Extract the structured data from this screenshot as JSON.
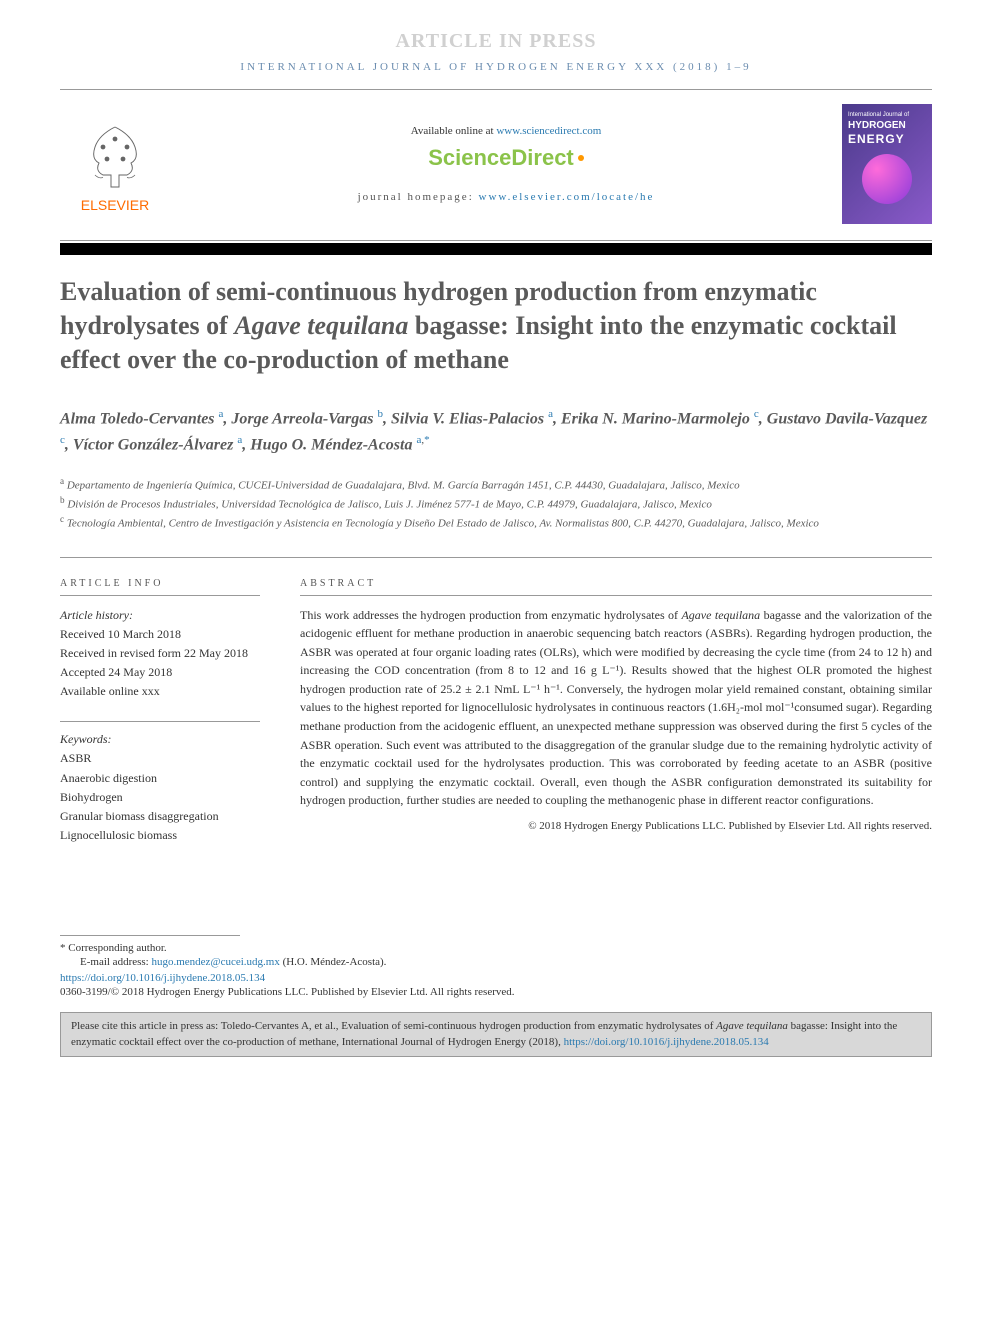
{
  "banner": {
    "article_in_press": "ARTICLE IN PRESS",
    "journal_ref": "INTERNATIONAL JOURNAL OF HYDROGEN ENERGY XXX (2018) 1–9"
  },
  "header": {
    "available_prefix": "Available online at ",
    "available_url": "www.sciencedirect.com",
    "sciencedirect": "ScienceDirect",
    "homepage_prefix": "journal homepage: ",
    "homepage_url": "www.elsevier.com/locate/he",
    "elsevier_label": "ELSEVIER",
    "cover_text1": "International Journal of",
    "cover_text2": "HYDROGEN",
    "cover_text3": "ENERGY"
  },
  "title": {
    "part1": "Evaluation of semi-continuous hydrogen production from enzymatic hydrolysates of ",
    "species": "Agave tequilana",
    "part2": " bagasse: Insight into the enzymatic cocktail effect over the co-production of methane"
  },
  "authors": [
    {
      "name": "Alma Toledo-Cervantes",
      "aff": "a"
    },
    {
      "name": "Jorge Arreola-Vargas",
      "aff": "b"
    },
    {
      "name": "Silvia V. Elias-Palacios",
      "aff": "a"
    },
    {
      "name": "Erika N. Marino-Marmolejo",
      "aff": "c"
    },
    {
      "name": "Gustavo Davila-Vazquez",
      "aff": "c"
    },
    {
      "name": "Víctor González-Álvarez",
      "aff": "a"
    },
    {
      "name": "Hugo O. Méndez-Acosta",
      "aff": "a",
      "corr": true
    }
  ],
  "affiliations": [
    {
      "key": "a",
      "text": "Departamento de Ingeniería Química, CUCEI-Universidad de Guadalajara, Blvd. M. García Barragán 1451, C.P. 44430, Guadalajara, Jalisco, Mexico"
    },
    {
      "key": "b",
      "text": "División de Procesos Industriales, Universidad Tecnológica de Jalisco, Luis J. Jiménez 577-1 de Mayo, C.P. 44979, Guadalajara, Jalisco, Mexico"
    },
    {
      "key": "c",
      "text": "Tecnología Ambiental, Centro de Investigación y Asistencia en Tecnología y Diseño Del Estado de Jalisco, Av. Normalistas 800, C.P. 44270, Guadalajara, Jalisco, Mexico"
    }
  ],
  "info": {
    "label": "ARTICLE INFO",
    "history_label": "Article history:",
    "received": "Received 10 March 2018",
    "revised": "Received in revised form 22 May 2018",
    "accepted": "Accepted 24 May 2018",
    "online": "Available online xxx",
    "keywords_label": "Keywords:",
    "keywords": [
      "ASBR",
      "Anaerobic digestion",
      "Biohydrogen",
      "Granular biomass disaggregation",
      "Lignocellulosic biomass"
    ]
  },
  "abstract": {
    "label": "ABSTRACT",
    "p1a": "This work addresses the hydrogen production from enzymatic hydrolysates of ",
    "species": "Agave tequilana",
    "p1b": " bagasse and the valorization of the acidogenic effluent for methane production in anaerobic sequencing batch reactors (ASBRs). Regarding hydrogen production, the ASBR was operated at four organic loading rates (OLRs), which were modified by decreasing the cycle time (from 24 to 12 h) and increasing the COD concentration (from 8 to 12 and 16 g L⁻¹). Results showed that the highest OLR promoted the highest hydrogen production rate of 25.2 ± 2.1 NmL L⁻¹ h⁻¹. Conversely, the hydrogen molar yield remained constant, obtaining similar values to the highest reported for lignocellulosic hydrolysates in continuous reactors (1.6H₂-mol mol⁻¹consumed sugar). Regarding methane production from the acidogenic effluent, an unexpected methane suppression was observed during the first 5 cycles of the ASBR operation. Such event was attributed to the disaggregation of the granular sludge due to the remaining hydrolytic activity of the enzymatic cocktail used for the hydrolysates production. This was corroborated by feeding acetate to an ASBR (positive control) and supplying the enzymatic cocktail. Overall, even though the ASBR configuration demonstrated its suitability for hydrogen production, further studies are needed to coupling the methanogenic phase in different reactor configurations.",
    "copyright": "© 2018 Hydrogen Energy Publications LLC. Published by Elsevier Ltd. All rights reserved."
  },
  "footer": {
    "corr_label": "* Corresponding author.",
    "email_label": "E-mail address: ",
    "email": "hugo.mendez@cucei.udg.mx",
    "email_author": " (H.O. Méndez-Acosta).",
    "doi": "https://doi.org/10.1016/j.ijhydene.2018.05.134",
    "issn": "0360-3199/© 2018 Hydrogen Energy Publications LLC. Published by Elsevier Ltd. All rights reserved.",
    "citation_prefix": "Please cite this article in press as: Toledo-Cervantes A, et al., Evaluation of semi-continuous hydrogen production from enzymatic hydrolysates of ",
    "citation_species": "Agave tequilana",
    "citation_suffix": " bagasse: Insight into the enzymatic cocktail effect over the co-production of methane, International Journal of Hydrogen Energy (2018), ",
    "citation_doi": "https://doi.org/10.1016/j.ijhydene.2018.05.134"
  },
  "colors": {
    "link": "#2a7ab0",
    "elsevier_orange": "#ff6b00",
    "sciencedirect_green": "#8bc34a",
    "title_gray": "#5a5a5a"
  }
}
